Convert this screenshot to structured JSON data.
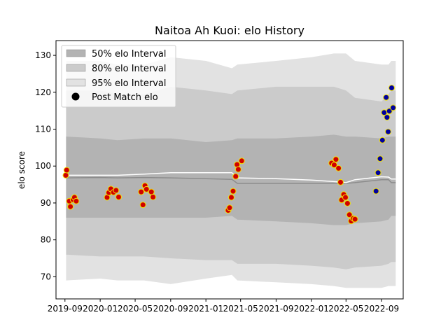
{
  "chart_data": {
    "type": "scatter",
    "title": "Naitoa Ah Kuoi: elo History",
    "xlabel": "",
    "ylabel": "elo score",
    "xlim": [
      "2019-08-01",
      "2022-11-15"
    ],
    "ylim": [
      64,
      134
    ],
    "x_ticks": [
      {
        "date": "2019-09-01",
        "label": "2019-09"
      },
      {
        "date": "2020-01-01",
        "label": "2020-01"
      },
      {
        "date": "2020-05-01",
        "label": "2020-05"
      },
      {
        "date": "2020-09-01",
        "label": "2020-09"
      },
      {
        "date": "2021-01-01",
        "label": "2021-01"
      },
      {
        "date": "2021-05-01",
        "label": "2021-05"
      },
      {
        "date": "2021-09-01",
        "label": "2021-09"
      },
      {
        "date": "2022-01-01",
        "label": "2022-01"
      },
      {
        "date": "2022-05-01",
        "label": "2022-05"
      },
      {
        "date": "2022-09-01",
        "label": "2022-09"
      }
    ],
    "y_ticks": [
      70,
      80,
      90,
      100,
      110,
      120,
      130
    ],
    "legend": {
      "position": "top-left",
      "entries": [
        "50% elo Interval",
        "80% elo Interval",
        "95% elo Interval",
        "Post Match elo"
      ]
    },
    "grid": false,
    "colors": {
      "band_95": "#e2e2e2",
      "band_80": "#cbcbcb",
      "band_50": "#b3b3b3",
      "median_line": "#8c8c8c",
      "mean_line": "#ffffff",
      "legend_marker": "#000000"
    },
    "bands": {
      "dates": [
        "2019-09-05",
        "2020-01-01",
        "2020-03-01",
        "2020-06-01",
        "2020-09-01",
        "2021-01-01",
        "2021-04-01",
        "2021-04-20",
        "2021-09-01",
        "2022-01-01",
        "2022-03-20",
        "2022-05-01",
        "2022-06-01",
        "2022-09-01",
        "2022-09-25",
        "2022-10-05",
        "2022-10-20"
      ],
      "p95_upper": [
        128.5,
        128.5,
        127.5,
        127.5,
        129.5,
        128.5,
        126.5,
        127.5,
        128.5,
        129.5,
        130.5,
        130.5,
        128.5,
        127.5,
        127.5,
        128.5,
        128.5
      ],
      "p80_upper": [
        120.5,
        120.5,
        119.5,
        119.5,
        121.5,
        120.5,
        119.5,
        120.5,
        121.5,
        121.5,
        121.5,
        120.5,
        118.5,
        117.5,
        119.5,
        120.5,
        120.5
      ],
      "p50_upper": [
        108.0,
        107.5,
        107.0,
        107.5,
        107.5,
        106.5,
        107.0,
        107.5,
        107.5,
        108.0,
        108.5,
        108.0,
        108.0,
        107.5,
        108.0,
        108.0,
        108.0
      ],
      "median": [
        96.8,
        96.9,
        96.8,
        96.9,
        96.8,
        96.6,
        96.4,
        95.3,
        95.3,
        95.3,
        95.3,
        95.3,
        95.5,
        96.3,
        96.3,
        95.5,
        95.5
      ],
      "mean": [
        97.5,
        97.5,
        97.5,
        97.8,
        98.2,
        98.2,
        98.2,
        96.8,
        96.6,
        96.2,
        95.8,
        95.5,
        96.3,
        97.1,
        97.0,
        96.5,
        96.5
      ],
      "p50_lower": [
        86.0,
        86.0,
        86.0,
        86.0,
        86.0,
        86.0,
        86.5,
        85.5,
        85.0,
        84.5,
        84.0,
        84.0,
        84.5,
        85.0,
        85.5,
        86.5,
        86.5
      ],
      "p80_lower": [
        76.0,
        75.5,
        75.5,
        75.5,
        75.0,
        74.5,
        74.5,
        73.5,
        73.5,
        73.0,
        72.5,
        72.0,
        72.5,
        73.0,
        73.5,
        74.0,
        74.0
      ],
      "p95_lower": [
        69.0,
        69.5,
        69.0,
        69.0,
        68.0,
        69.5,
        70.5,
        69.0,
        68.5,
        68.0,
        67.5,
        67.0,
        67.0,
        67.0,
        67.5,
        67.5,
        67.5
      ]
    },
    "series": [
      {
        "fill": "#d00000",
        "edge": "#f0e000",
        "points": [
          [
            "2019-09-04",
            97.5
          ],
          [
            "2019-09-07",
            98.9
          ],
          [
            "2019-09-16",
            90.5
          ],
          [
            "2019-09-20",
            89.0
          ],
          [
            "2019-09-29",
            90.9
          ],
          [
            "2019-10-04",
            91.5
          ],
          [
            "2019-10-10",
            90.5
          ],
          [
            "2020-01-25",
            91.5
          ],
          [
            "2020-01-31",
            92.8
          ],
          [
            "2020-02-07",
            93.8
          ],
          [
            "2020-02-16",
            92.9
          ],
          [
            "2020-02-25",
            93.4
          ],
          [
            "2020-03-05",
            91.6
          ],
          [
            "2020-05-22",
            93.0
          ],
          [
            "2020-05-28",
            89.5
          ],
          [
            "2020-06-04",
            94.7
          ],
          [
            "2020-06-09",
            93.7
          ],
          [
            "2020-06-26",
            93.0
          ],
          [
            "2020-07-02",
            91.6
          ],
          [
            "2021-03-19",
            88.0
          ],
          [
            "2021-03-24",
            88.7
          ],
          [
            "2021-03-30",
            91.5
          ],
          [
            "2021-04-05",
            93.2
          ],
          [
            "2021-04-14",
            97.2
          ],
          [
            "2021-04-19",
            100.4
          ],
          [
            "2021-04-23",
            99.1
          ],
          [
            "2021-05-05",
            101.4
          ],
          [
            "2022-03-12",
            100.8
          ],
          [
            "2022-03-21",
            100.3
          ],
          [
            "2022-03-27",
            101.8
          ],
          [
            "2022-04-05",
            99.4
          ],
          [
            "2022-04-12",
            95.6
          ],
          [
            "2022-04-16",
            90.8
          ],
          [
            "2022-04-23",
            92.3
          ],
          [
            "2022-04-29",
            91.5
          ],
          [
            "2022-05-06",
            89.9
          ],
          [
            "2022-05-13",
            86.8
          ],
          [
            "2022-05-19",
            85.1
          ],
          [
            "2022-05-26",
            85.8
          ],
          [
            "2022-06-01",
            85.6
          ]
        ]
      },
      {
        "fill": "#0000a0",
        "edge": "#f0e000",
        "points": [
          [
            "2022-08-13",
            93.2
          ],
          [
            "2022-08-20",
            98.2
          ],
          [
            "2022-08-27",
            102.0
          ],
          [
            "2022-09-04",
            107.0
          ],
          [
            "2022-09-10",
            114.5
          ],
          [
            "2022-09-17",
            118.6
          ],
          [
            "2022-09-20",
            113.2
          ],
          [
            "2022-09-24",
            109.3
          ],
          [
            "2022-09-28",
            114.9
          ],
          [
            "2022-10-06",
            121.2
          ],
          [
            "2022-10-11",
            115.8
          ]
        ]
      }
    ]
  }
}
